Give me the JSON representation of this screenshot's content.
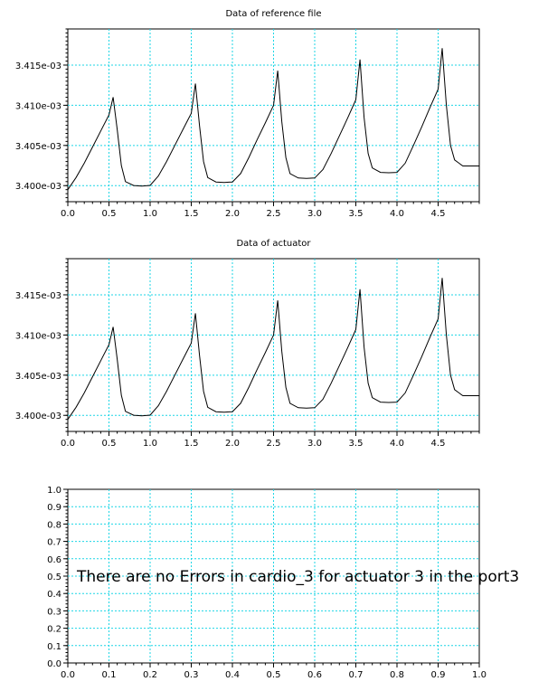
{
  "chart_data": [
    {
      "type": "line",
      "title": "Data of reference file",
      "xlim": [
        0,
        5
      ],
      "ylim": [
        0.003398,
        0.0034195
      ],
      "x_ticks": [
        0.0,
        0.5,
        1.0,
        1.5,
        2.0,
        2.5,
        3.0,
        3.5,
        4.0,
        4.5
      ],
      "x_tick_labels": [
        "0.0",
        "0.5",
        "1.0",
        "1.5",
        "2.0",
        "2.5",
        "3.0",
        "3.5",
        "4.0",
        "4.5"
      ],
      "y_ticks": [
        0.0034,
        0.003405,
        0.00341,
        0.003415
      ],
      "y_tick_labels": [
        "3.400e-03",
        "3.405e-03",
        "3.410e-03",
        "3.415e-03"
      ],
      "grid": true,
      "series": [
        {
          "color": "#000000",
          "x": [
            0.0,
            0.1,
            0.2,
            0.3,
            0.4,
            0.5,
            0.55,
            0.6,
            0.65,
            0.7,
            0.8,
            0.9,
            1.0,
            1.1,
            1.2,
            1.3,
            1.4,
            1.5,
            1.55,
            1.6,
            1.65,
            1.7,
            1.8,
            1.9,
            2.0,
            2.1,
            2.2,
            2.3,
            2.4,
            2.5,
            2.55,
            2.6,
            2.65,
            2.7,
            2.8,
            2.9,
            3.0,
            3.1,
            3.2,
            3.3,
            3.4,
            3.5,
            3.55,
            3.6,
            3.65,
            3.7,
            3.8,
            3.9,
            4.0,
            4.1,
            4.2,
            4.3,
            4.4,
            4.5,
            4.55,
            4.6,
            4.65,
            4.7,
            4.8,
            4.9,
            5.0
          ],
          "y": [
            0.0033995,
            0.003401,
            0.0034028,
            0.0034048,
            0.0034068,
            0.0034088,
            0.003411,
            0.003407,
            0.0034025,
            0.0034005,
            0.00340002,
            0.00339995,
            0.00340003,
            0.0034012,
            0.003403,
            0.003405,
            0.003407,
            0.003409,
            0.0034127,
            0.0034075,
            0.003403,
            0.003401,
            0.00340045,
            0.0034004,
            0.00340045,
            0.0034015,
            0.0034035,
            0.0034057,
            0.0034078,
            0.00341,
            0.0034143,
            0.003408,
            0.0034035,
            0.0034015,
            0.00340095,
            0.0034009,
            0.00340095,
            0.003402,
            0.003404,
            0.0034062,
            0.0034084,
            0.0034107,
            0.0034157,
            0.0034085,
            0.003404,
            0.0034022,
            0.00340165,
            0.0034016,
            0.00340165,
            0.0034028,
            0.003405,
            0.0034073,
            0.0034097,
            0.003412,
            0.0034171,
            0.00341,
            0.003405,
            0.0034032,
            0.00340245,
            0.00340245,
            0.00340245
          ]
        }
      ]
    },
    {
      "type": "line",
      "title": "Data of actuator",
      "xlim": [
        0,
        5
      ],
      "ylim": [
        0.003398,
        0.0034195
      ],
      "x_ticks": [
        0.0,
        0.5,
        1.0,
        1.5,
        2.0,
        2.5,
        3.0,
        3.5,
        4.0,
        4.5
      ],
      "x_tick_labels": [
        "0.0",
        "0.5",
        "1.0",
        "1.5",
        "2.0",
        "2.5",
        "3.0",
        "3.5",
        "4.0",
        "4.5"
      ],
      "y_ticks": [
        0.0034,
        0.003405,
        0.00341,
        0.003415
      ],
      "y_tick_labels": [
        "3.400e-03",
        "3.405e-03",
        "3.410e-03",
        "3.415e-03"
      ],
      "grid": true,
      "series": [
        {
          "color": "#000000",
          "x": [
            0.0,
            0.1,
            0.2,
            0.3,
            0.4,
            0.5,
            0.55,
            0.6,
            0.65,
            0.7,
            0.8,
            0.9,
            1.0,
            1.1,
            1.2,
            1.3,
            1.4,
            1.5,
            1.55,
            1.6,
            1.65,
            1.7,
            1.8,
            1.9,
            2.0,
            2.1,
            2.2,
            2.3,
            2.4,
            2.5,
            2.55,
            2.6,
            2.65,
            2.7,
            2.8,
            2.9,
            3.0,
            3.1,
            3.2,
            3.3,
            3.4,
            3.5,
            3.55,
            3.6,
            3.65,
            3.7,
            3.8,
            3.9,
            4.0,
            4.1,
            4.2,
            4.3,
            4.4,
            4.5,
            4.55,
            4.6,
            4.65,
            4.7,
            4.8,
            4.9,
            5.0
          ],
          "y": [
            0.0033995,
            0.003401,
            0.0034028,
            0.0034048,
            0.0034068,
            0.0034088,
            0.003411,
            0.003407,
            0.0034025,
            0.0034005,
            0.00340002,
            0.00339995,
            0.00340003,
            0.0034012,
            0.003403,
            0.003405,
            0.003407,
            0.003409,
            0.0034127,
            0.0034075,
            0.003403,
            0.003401,
            0.00340045,
            0.0034004,
            0.00340045,
            0.0034015,
            0.0034035,
            0.0034057,
            0.0034078,
            0.00341,
            0.0034143,
            0.003408,
            0.0034035,
            0.0034015,
            0.00340095,
            0.0034009,
            0.00340095,
            0.003402,
            0.003404,
            0.0034062,
            0.0034084,
            0.0034107,
            0.0034157,
            0.0034085,
            0.003404,
            0.0034022,
            0.00340165,
            0.0034016,
            0.00340165,
            0.0034028,
            0.003405,
            0.0034073,
            0.0034097,
            0.003412,
            0.0034171,
            0.00341,
            0.003405,
            0.0034032,
            0.00340245,
            0.00340245,
            0.00340245
          ]
        }
      ]
    },
    {
      "type": "line",
      "title": "",
      "xlim": [
        0,
        1
      ],
      "ylim": [
        0,
        1
      ],
      "x_ticks": [
        0.0,
        0.1,
        0.2,
        0.3,
        0.4,
        0.5,
        0.6,
        0.7,
        0.8,
        0.9,
        1.0
      ],
      "x_tick_labels": [
        "0.0",
        "0.1",
        "0.2",
        "0.3",
        "0.4",
        "0.5",
        "0.6",
        "0.7",
        "0.8",
        "0.9",
        "1.0"
      ],
      "y_ticks": [
        0.0,
        0.1,
        0.2,
        0.3,
        0.4,
        0.5,
        0.6,
        0.7,
        0.8,
        0.9,
        1.0
      ],
      "y_tick_labels": [
        "0.0",
        "0.1",
        "0.2",
        "0.3",
        "0.4",
        "0.5",
        "0.6",
        "0.7",
        "0.8",
        "0.9",
        "1.0"
      ],
      "grid": true,
      "series": [],
      "annotation": "There are no Errors in cardio_3 for actuator 3 in the port3"
    }
  ]
}
